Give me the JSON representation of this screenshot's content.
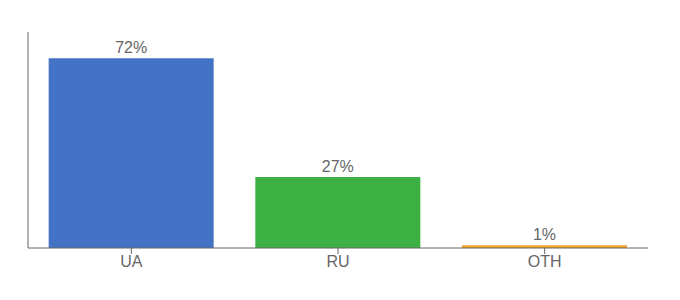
{
  "chart_data": {
    "type": "bar",
    "categories": [
      "UA",
      "RU",
      "OTH"
    ],
    "values": [
      72,
      27,
      1
    ],
    "value_labels": [
      "72%",
      "27%",
      "1%"
    ],
    "data_labels": true,
    "colors": [
      "#4472c4",
      "#3cb043",
      "#f5a623"
    ],
    "ylim": [
      0,
      82
    ],
    "grid": false,
    "tick_labels": "x"
  }
}
